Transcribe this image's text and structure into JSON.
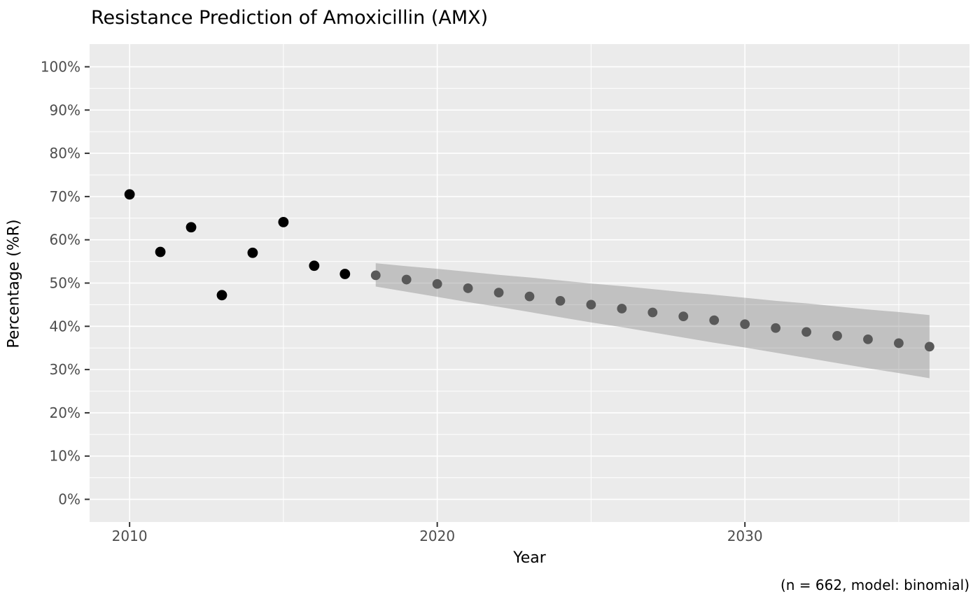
{
  "chart": {
    "title": "Resistance Prediction of Amoxicillin (AMX)",
    "xlabel": "Year",
    "ylabel": "Percentage (%R)",
    "caption": "(n = 662, model: binomial)"
  },
  "chart_data": {
    "type": "scatter",
    "title": "Resistance Prediction of Amoxicillin (AMX)",
    "xlabel": "Year",
    "ylabel": "Percentage (%R)",
    "caption": "(n = 662, model: binomial)",
    "xlim": [
      2008.7,
      2037.3
    ],
    "ylim": [
      -5.25,
      105.25
    ],
    "grid": {
      "major": "#FFFFFF",
      "minor": "#FFFFFF",
      "background": "#EBEBEB"
    },
    "legend": "none",
    "colors": {
      "observed_point": "#000000",
      "predicted_point": "#595959",
      "ribbon": "rgba(125,125,125,0.38)",
      "tick_mark": "#333333",
      "tick_label": "#4D4D4D"
    },
    "x_ticks": {
      "values": [
        2010,
        2020,
        2030
      ],
      "labels": [
        "2010",
        "2020",
        "2030"
      ]
    },
    "x_minor_ticks": [
      2015,
      2025,
      2035
    ],
    "y_ticks": {
      "values": [
        0,
        10,
        20,
        30,
        40,
        50,
        60,
        70,
        80,
        90,
        100
      ],
      "labels": [
        "0%",
        "10%",
        "20%",
        "30%",
        "40%",
        "50%",
        "60%",
        "70%",
        "80%",
        "90%",
        "100%"
      ]
    },
    "y_minor_ticks": [
      5,
      15,
      25,
      35,
      45,
      55,
      65,
      75,
      85,
      95
    ],
    "series": [
      {
        "name": "observed",
        "marker_radius": 7.4,
        "x": [
          2010,
          2011,
          2012,
          2013,
          2014,
          2015,
          2016,
          2017
        ],
        "y": [
          70.5,
          57.2,
          62.9,
          47.2,
          57.0,
          64.1,
          54.0,
          52.1
        ]
      },
      {
        "name": "predicted",
        "marker_radius": 6.9,
        "x": [
          2018,
          2019,
          2020,
          2021,
          2022,
          2023,
          2024,
          2025,
          2026,
          2027,
          2028,
          2029,
          2030,
          2031,
          2032,
          2033,
          2034,
          2035,
          2036
        ],
        "y": [
          51.8,
          50.8,
          49.8,
          48.8,
          47.8,
          46.9,
          45.9,
          45.0,
          44.1,
          43.2,
          42.3,
          41.4,
          40.5,
          39.6,
          38.7,
          37.8,
          37.0,
          36.1,
          35.3
        ]
      }
    ],
    "ribbon": {
      "name": "confidence-interval",
      "x": [
        2018,
        2019,
        2020,
        2021,
        2022,
        2023,
        2024,
        2025,
        2026,
        2027,
        2028,
        2029,
        2030,
        2031,
        2032,
        2033,
        2034,
        2035,
        2036
      ],
      "lower": [
        49.2,
        48.0,
        46.8,
        45.6,
        44.5,
        43.3,
        42.1,
        40.9,
        39.8,
        38.6,
        37.4,
        36.2,
        35.1,
        33.9,
        32.7,
        31.5,
        30.3,
        29.2,
        28.0
      ],
      "upper": [
        54.6,
        53.9,
        53.3,
        52.6,
        51.9,
        51.3,
        50.6,
        49.9,
        49.3,
        48.6,
        47.9,
        47.3,
        46.6,
        45.9,
        45.3,
        44.6,
        43.9,
        43.3,
        42.6
      ]
    }
  }
}
